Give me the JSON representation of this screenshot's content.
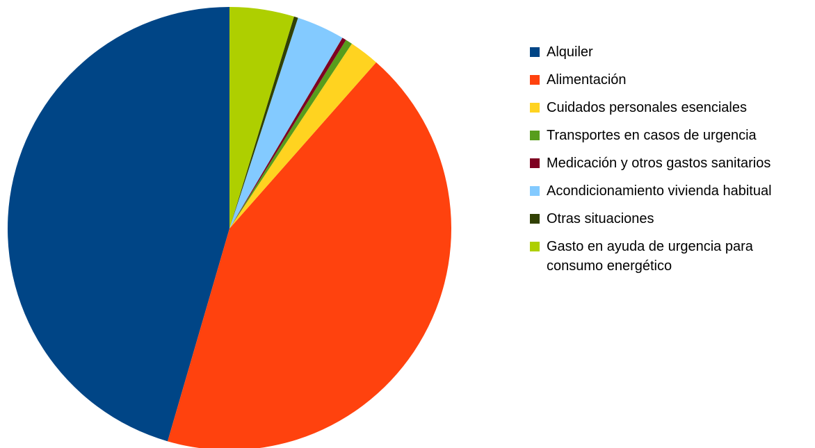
{
  "chart_data": {
    "type": "pie",
    "categories": [
      "Alquiler",
      "Alimentación",
      "Cuidados personales esenciales",
      "Transportes en casos de urgencia",
      "Medicación y otros gastos sanitarios",
      "Acondicionamiento vivienda habitual",
      "Otras situaciones",
      "Gasto en ayuda de urgencia para consumo energético"
    ],
    "values": [
      45.5,
      43.0,
      2.2,
      0.5,
      0.3,
      3.5,
      0.3,
      4.7
    ],
    "colors": [
      "#004586",
      "#ff420e",
      "#ffd320",
      "#579d1c",
      "#7e0021",
      "#83caff",
      "#314004",
      "#aecf00"
    ],
    "start": "top",
    "direction": "counterclockwise",
    "legend": "right"
  }
}
